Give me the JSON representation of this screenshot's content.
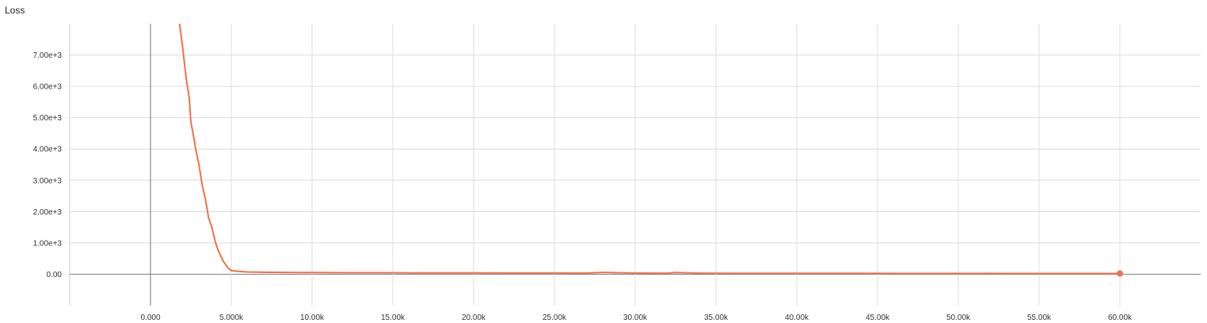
{
  "chart_data": {
    "type": "line",
    "title": "Loss",
    "xlabel": "",
    "ylabel": "",
    "xlim": [
      -5000,
      65000
    ],
    "ylim": [
      -1000,
      8000
    ],
    "x_ticks": [
      0,
      5000,
      10000,
      15000,
      20000,
      25000,
      30000,
      35000,
      40000,
      45000,
      50000,
      55000,
      60000
    ],
    "x_tick_labels": [
      "0.000",
      "5.000k",
      "10.00k",
      "15.00k",
      "20.00k",
      "25.00k",
      "30.00k",
      "35.00k",
      "40.00k",
      "45.00k",
      "50.00k",
      "55.00k",
      "60.00k"
    ],
    "y_ticks": [
      0,
      1000,
      2000,
      3000,
      4000,
      5000,
      6000,
      7000
    ],
    "y_tick_labels": [
      "0.00",
      "1.00e+3",
      "2.00e+3",
      "3.00e+3",
      "4.00e+3",
      "5.00e+3",
      "6.00e+3",
      "7.00e+3"
    ],
    "grid": true,
    "color": "#f0714a",
    "series": [
      {
        "x": [
          1800,
          2000,
          2200,
          2400,
          2500,
          2600,
          2800,
          3000,
          3200,
          3400,
          3600,
          3800,
          4000,
          4200,
          4500,
          4800,
          5000,
          5500,
          6000,
          7000,
          8000,
          9000,
          10000,
          12000,
          14000,
          16000,
          18000,
          20000,
          22000,
          25000,
          27000,
          28000,
          30000,
          32000,
          32500,
          34000,
          36000,
          38000,
          40000,
          42000,
          44000,
          46000,
          48000,
          50000,
          52000,
          54000,
          56000,
          58000,
          60000
        ],
        "y": [
          8000,
          7200,
          6300,
          5600,
          4850,
          4600,
          4000,
          3500,
          2850,
          2400,
          1800,
          1500,
          1050,
          750,
          420,
          200,
          120,
          90,
          75,
          65,
          60,
          58,
          55,
          50,
          48,
          45,
          43,
          42,
          40,
          38,
          37,
          60,
          36,
          34,
          55,
          33,
          32,
          31,
          30,
          29,
          28,
          27,
          27,
          26,
          26,
          25,
          25,
          25,
          25
        ]
      }
    ]
  }
}
